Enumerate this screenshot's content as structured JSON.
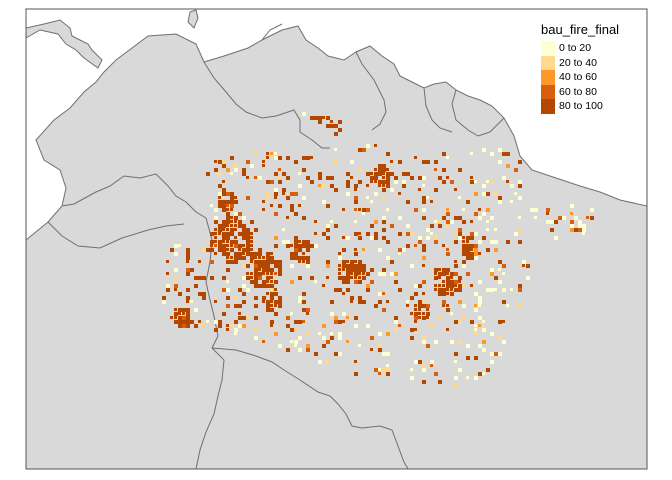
{
  "map": {
    "colors": {
      "land": "#d9d9d9",
      "border": "#6f6f6f",
      "ocean": "#ffffff",
      "frame": "#555555"
    }
  },
  "legend": {
    "title": "bau_fire_final",
    "items": [
      {
        "label": "0 to 20",
        "color": "#ffffd4"
      },
      {
        "label": "20 to 40",
        "color": "#fed98e"
      },
      {
        "label": "40 to 60",
        "color": "#fe9929"
      },
      {
        "label": "60 to 80",
        "color": "#d95f0e"
      },
      {
        "label": "80 to 100",
        "color": "#b34700"
      }
    ]
  }
}
